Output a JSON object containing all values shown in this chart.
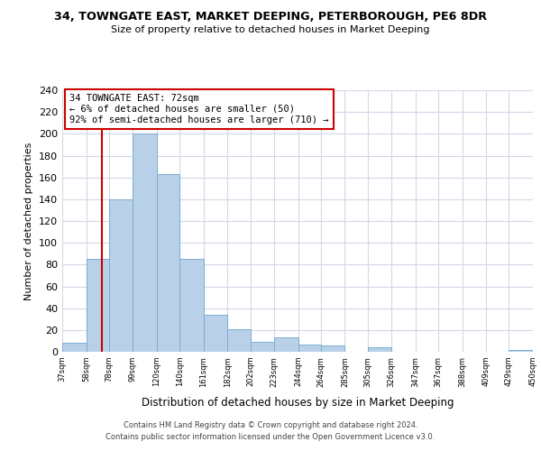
{
  "title": "34, TOWNGATE EAST, MARKET DEEPING, PETERBOROUGH, PE6 8DR",
  "subtitle": "Size of property relative to detached houses in Market Deeping",
  "xlabel": "Distribution of detached houses by size in Market Deeping",
  "ylabel": "Number of detached properties",
  "bin_edges": [
    37,
    58,
    78,
    99,
    120,
    140,
    161,
    182,
    202,
    223,
    244,
    264,
    285,
    305,
    326,
    347,
    367,
    388,
    409,
    429,
    450
  ],
  "counts": [
    8,
    85,
    140,
    200,
    163,
    85,
    34,
    21,
    9,
    13,
    7,
    6,
    0,
    4,
    0,
    0,
    0,
    0,
    0,
    2
  ],
  "bar_color": "#b8d0e8",
  "bar_edge_color": "#7aaed4",
  "property_line_x": 72,
  "property_line_color": "#cc0000",
  "annotation_line1": "34 TOWNGATE EAST: 72sqm",
  "annotation_line2": "← 6% of detached houses are smaller (50)",
  "annotation_line3": "92% of semi-detached houses are larger (710) →",
  "annotation_box_color": "#ffffff",
  "annotation_box_edge_color": "#cc0000",
  "ylim": [
    0,
    240
  ],
  "yticks": [
    0,
    20,
    40,
    60,
    80,
    100,
    120,
    140,
    160,
    180,
    200,
    220,
    240
  ],
  "footer_line1": "Contains HM Land Registry data © Crown copyright and database right 2024.",
  "footer_line2": "Contains public sector information licensed under the Open Government Licence v3.0.",
  "background_color": "#ffffff",
  "grid_color": "#d0d8e8"
}
